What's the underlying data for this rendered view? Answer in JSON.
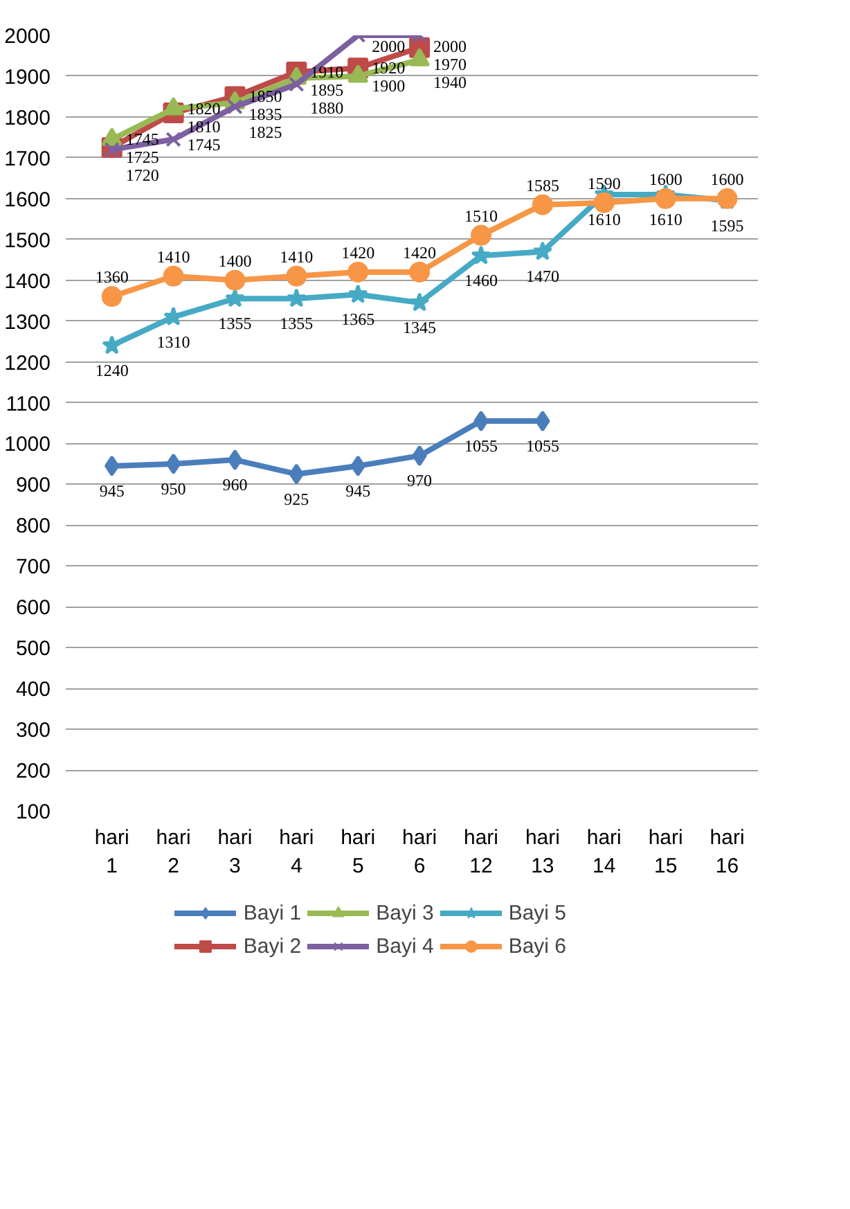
{
  "chart_data": {
    "type": "line",
    "categories": [
      "hari 1",
      "hari 2",
      "hari 3",
      "hari 4",
      "hari 5",
      "hari 6",
      "hari 12",
      "hari 13",
      "hari 14",
      "hari 15",
      "hari 16"
    ],
    "series": [
      {
        "name": "Bayi 1",
        "color": "#4a7ebb",
        "marker": "diamond",
        "values": [
          945,
          950,
          960,
          925,
          945,
          970,
          1055,
          1055,
          null,
          null,
          null
        ]
      },
      {
        "name": "Bayi 2",
        "color": "#be4b48",
        "marker": "square",
        "values": [
          1725,
          1810,
          1850,
          1910,
          1920,
          1970,
          null,
          null,
          null,
          null,
          null
        ]
      },
      {
        "name": "Bayi 3",
        "color": "#98b954",
        "marker": "triangle",
        "values": [
          1745,
          1820,
          1835,
          1895,
          1900,
          1940,
          null,
          null,
          null,
          null,
          null
        ]
      },
      {
        "name": "Bayi 4",
        "color": "#7d60a0",
        "marker": "cross",
        "values": [
          1720,
          1745,
          1825,
          1880,
          2000,
          2000,
          null,
          null,
          null,
          null,
          null
        ]
      },
      {
        "name": "Bayi 5",
        "color": "#46aac5",
        "marker": "star",
        "values": [
          1240,
          1310,
          1355,
          1355,
          1365,
          1345,
          1460,
          1470,
          1610,
          1610,
          1595
        ]
      },
      {
        "name": "Bayi 6",
        "color": "#f79646",
        "marker": "circle",
        "values": [
          1360,
          1410,
          1400,
          1410,
          1420,
          1420,
          1510,
          1585,
          1590,
          1600,
          1600
        ]
      }
    ],
    "ylim": [
      100,
      2000
    ],
    "yticks": [
      100,
      200,
      300,
      400,
      500,
      600,
      700,
      800,
      900,
      1000,
      1100,
      1200,
      1300,
      1400,
      1500,
      1600,
      1700,
      1800,
      1900,
      2000
    ],
    "grid": "y",
    "legend": "bottom",
    "data_labels": true
  }
}
